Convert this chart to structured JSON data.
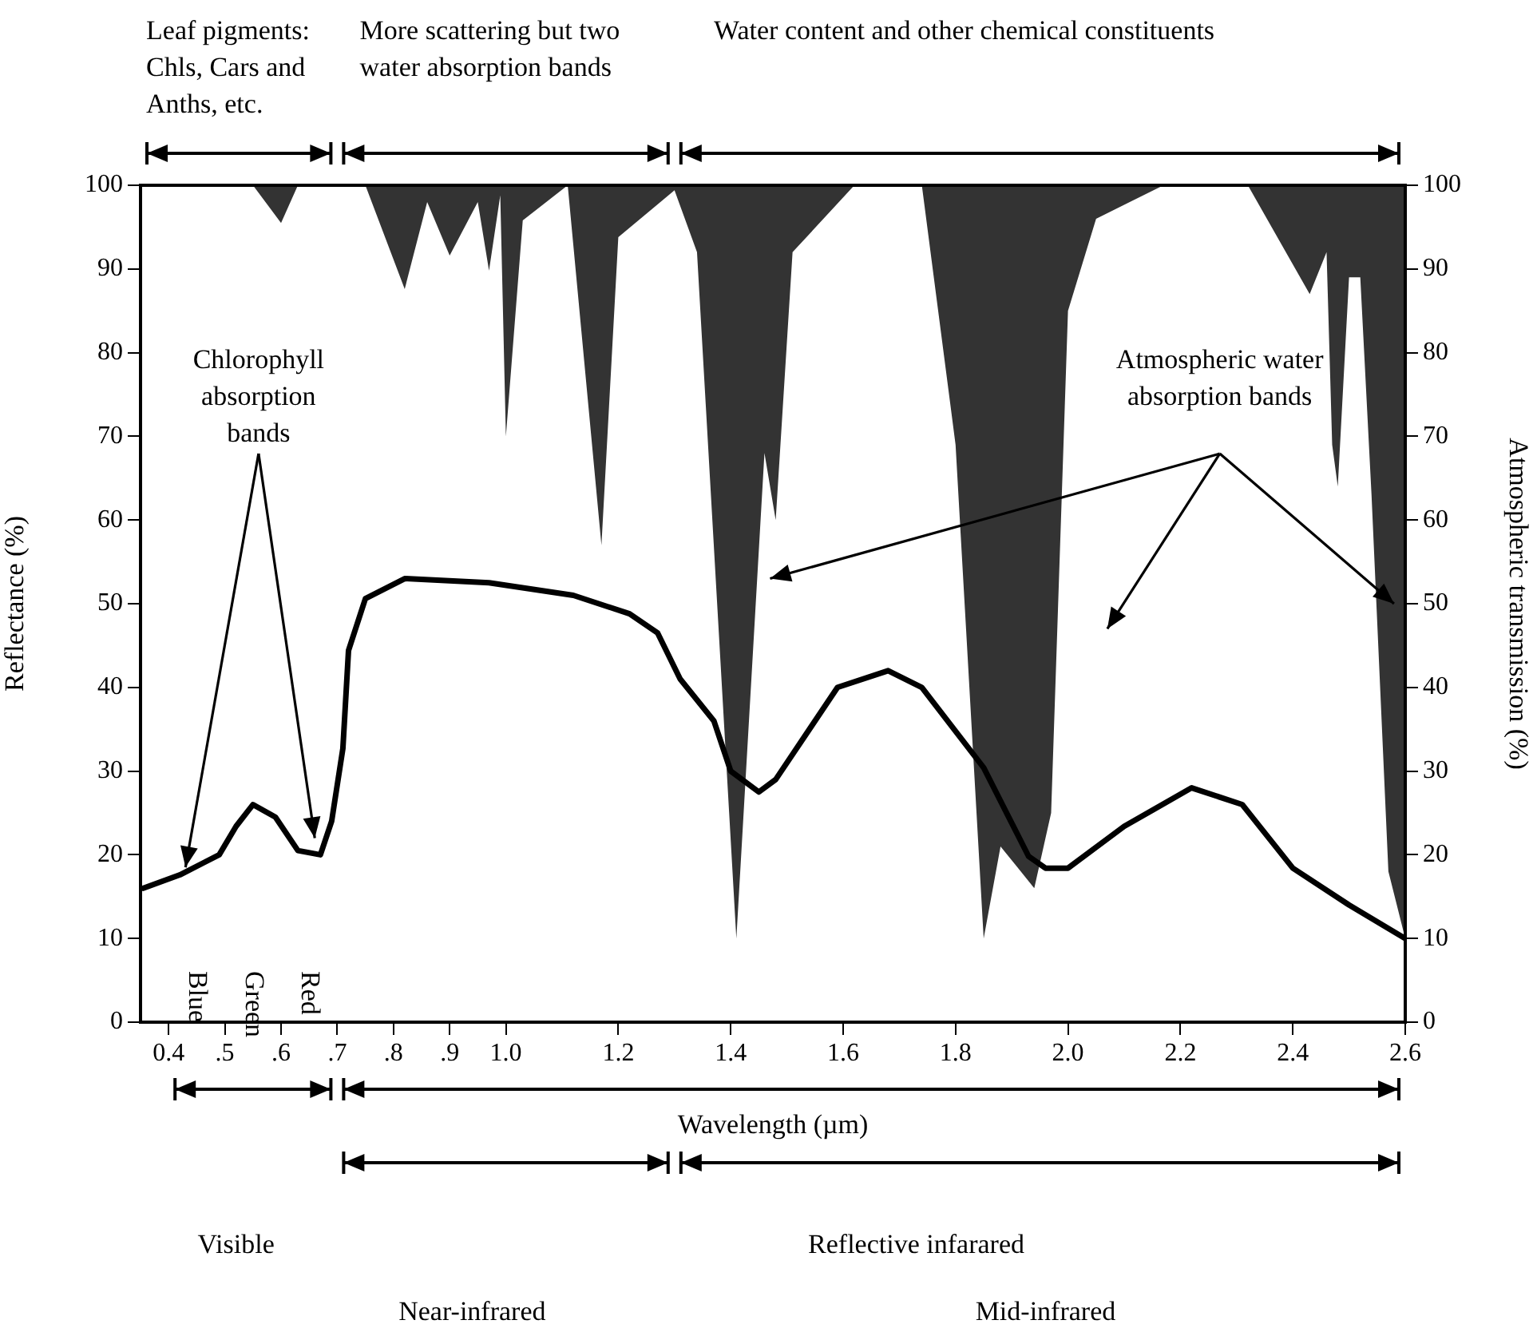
{
  "chart_data": {
    "type": "line",
    "xlabel": "Wavelength (µm)",
    "ylabel": "Reflectance (%)",
    "y2label": "Atmospheric transmission (%)",
    "xlim": [
      0.35,
      2.6
    ],
    "xticks": [
      0.4,
      {
        "value": 0.5,
        "label": ".5"
      },
      {
        "value": 0.6,
        "label": ".6"
      },
      {
        "value": 0.7,
        "label": ".7"
      },
      {
        "value": 0.8,
        "label": ".8"
      },
      {
        "value": 0.9,
        "label": ".9"
      },
      {
        "value": 1.0,
        "label": "1.0"
      },
      1.2,
      1.4,
      1.6,
      1.8,
      {
        "value": 2.0,
        "label": "2.0"
      },
      2.2,
      2.4,
      2.6
    ],
    "ylim": [
      0,
      100
    ],
    "yticks": [
      0,
      10,
      20,
      30,
      40,
      50,
      60,
      70,
      80,
      90,
      100
    ],
    "y2lim": [
      0,
      100
    ],
    "y2ticks": [
      0,
      10,
      20,
      30,
      40,
      50,
      60,
      70,
      80,
      90,
      100
    ],
    "marker": "none",
    "line_style": "solid",
    "series": [
      {
        "type": "area",
        "axis": "y2",
        "color": "#333333",
        "x": [
          0.35,
          0.55,
          0.6,
          0.63,
          0.75,
          0.82,
          0.86,
          0.9,
          0.95,
          0.97,
          0.99,
          1.0,
          1.03,
          1.11,
          1.17,
          1.2,
          1.3,
          1.34,
          1.41,
          1.46,
          1.48,
          1.51,
          1.62,
          1.74,
          1.8,
          1.85,
          1.88,
          1.94,
          1.97,
          2.0,
          2.05,
          2.17,
          2.32,
          2.43,
          2.46,
          2.47,
          2.48,
          2.5,
          2.52,
          2.54,
          2.57,
          2.6,
          2.6
        ],
        "values": [
          100,
          100,
          95.5,
          100,
          100,
          87.6,
          98,
          91.6,
          98,
          89.8,
          98.8,
          70,
          95.8,
          100,
          57,
          93.8,
          99.4,
          92,
          10,
          68,
          60,
          92,
          100,
          100,
          69,
          10,
          21,
          16,
          25,
          85,
          96,
          100,
          100,
          87,
          92,
          69,
          64,
          89,
          89,
          63,
          18,
          10,
          100
        ]
      },
      {
        "type": "line",
        "color": "#000000",
        "x": [
          0.355,
          0.42,
          0.49,
          0.52,
          0.55,
          0.59,
          0.63,
          0.67,
          0.69,
          0.71,
          0.72,
          0.75,
          0.82,
          0.97,
          1.12,
          1.22,
          1.27,
          1.31,
          1.37,
          1.4,
          1.45,
          1.48,
          1.59,
          1.68,
          1.74,
          1.85,
          1.93,
          1.96,
          2.0,
          2.1,
          2.22,
          2.31,
          2.4,
          2.5,
          2.6
        ],
        "values": [
          16,
          17.6,
          20,
          23.4,
          26,
          24.5,
          20.5,
          20,
          24,
          32.7,
          44.4,
          50.6,
          53,
          52.5,
          51,
          48.8,
          46.5,
          41,
          36,
          30,
          27.5,
          29,
          40,
          42,
          40,
          30.4,
          19.8,
          18.4,
          18.4,
          23.4,
          28,
          26,
          18.4,
          14,
          10
        ]
      }
    ],
    "annotations": [
      "Leaf pigments: Chls, Cars and Anths, etc.",
      "More scattering but two water absorption bands",
      "Water content and other chemical constituents",
      {
        "text": "Chlorophyll absorption bands",
        "x": 0.43,
        "y": 18.5
      },
      "Atmospheric water absorption bands",
      "Blue",
      "Green",
      "Red",
      "Visible",
      "Reflective infarared",
      "Near-infrared",
      "Mid-infrared"
    ]
  }
}
